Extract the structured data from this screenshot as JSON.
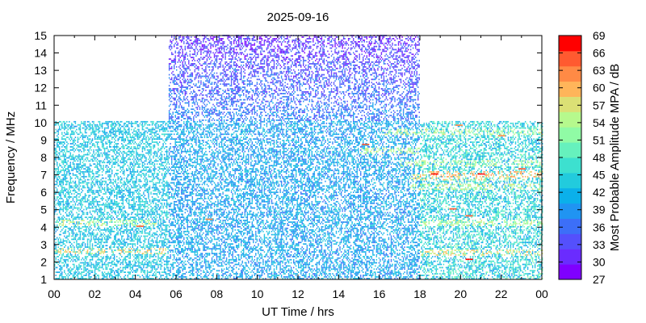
{
  "chart_data": {
    "type": "heatmap",
    "title": "2025-09-16",
    "xlabel": "UT Time / hrs",
    "ylabel": "Frequency / MHz",
    "xlim": [
      0,
      24
    ],
    "ylim": [
      1,
      15
    ],
    "x_ticks": [
      "00",
      "02",
      "04",
      "06",
      "08",
      "10",
      "12",
      "14",
      "16",
      "18",
      "20",
      "22",
      "00"
    ],
    "y_ticks": [
      "1",
      "2",
      "3",
      "4",
      "5",
      "6",
      "7",
      "8",
      "9",
      "10",
      "11",
      "12",
      "13",
      "14",
      "15"
    ],
    "grid": false,
    "colorbar": {
      "label": "Most Probable Amplitude MPA / dB",
      "range": [
        27,
        69
      ],
      "ticks": [
        "27",
        "30",
        "33",
        "36",
        "39",
        "42",
        "45",
        "48",
        "51",
        "54",
        "57",
        "60",
        "63",
        "66",
        "69"
      ],
      "colors": [
        "#7f00ff",
        "#6a2cfe",
        "#5450fc",
        "#3c6ff8",
        "#2094f2",
        "#0bb0ea",
        "#22cbdd",
        "#3de0cf",
        "#66f1bd",
        "#90fba5",
        "#b6f98d",
        "#dbe075",
        "#ffb55a",
        "#ff8a45",
        "#ff5a30",
        "#ff0000"
      ]
    },
    "regions": [
      {
        "x": [
          0,
          5.6
        ],
        "y": [
          1,
          10
        ],
        "dominant_mpa": [
          39,
          48
        ],
        "note_values": "mostly 36-48 dB"
      },
      {
        "x": [
          5.6,
          18
        ],
        "y": [
          10,
          15
        ],
        "dominant_mpa": [
          27,
          36
        ]
      },
      {
        "x": [
          5.6,
          18
        ],
        "y": [
          1,
          10
        ],
        "dominant_mpa": [
          36,
          45
        ]
      },
      {
        "x": [
          18,
          24
        ],
        "y": [
          1,
          10
        ],
        "dominant_mpa": [
          39,
          51
        ]
      }
    ],
    "bands": [
      {
        "y": 2.6,
        "x": [
          0,
          5.5
        ],
        "mpa": 57
      },
      {
        "y": 2.5,
        "x": [
          18,
          24
        ],
        "mpa": 57
      },
      {
        "y": 4.2,
        "x": [
          0,
          5
        ],
        "mpa": 54
      },
      {
        "y": 4.2,
        "x": [
          18,
          24
        ],
        "mpa": 54
      },
      {
        "y": 6.8,
        "x": [
          17.5,
          24
        ],
        "mpa": 57
      },
      {
        "y": 6.3,
        "x": [
          17.5,
          24
        ],
        "mpa": 54
      },
      {
        "y": 7.0,
        "x": [
          18,
          24
        ],
        "mpa": 60
      },
      {
        "y": 7.6,
        "x": [
          17,
          24
        ],
        "mpa": 54
      },
      {
        "y": 8.3,
        "x": [
          15,
          18
        ],
        "mpa": 54
      },
      {
        "y": 9.4,
        "x": [
          16,
          24
        ],
        "mpa": 54
      }
    ],
    "hotspots": [
      {
        "x": 4.2,
        "y": 4.0,
        "mpa": 66
      },
      {
        "x": 7.6,
        "y": 4.4,
        "mpa": 63
      },
      {
        "x": 15.3,
        "y": 8.7,
        "mpa": 66
      },
      {
        "x": 18.7,
        "y": 7.0,
        "mpa": 69
      },
      {
        "x": 19.6,
        "y": 5.0,
        "mpa": 66
      },
      {
        "x": 20.4,
        "y": 4.6,
        "mpa": 66
      },
      {
        "x": 20.4,
        "y": 2.1,
        "mpa": 69
      },
      {
        "x": 21.0,
        "y": 7.0,
        "mpa": 69
      },
      {
        "x": 22.0,
        "y": 9.2,
        "mpa": 63
      },
      {
        "x": 23.0,
        "y": 7.3,
        "mpa": 66
      },
      {
        "x": 19.9,
        "y": 9.8,
        "mpa": 63
      }
    ]
  }
}
